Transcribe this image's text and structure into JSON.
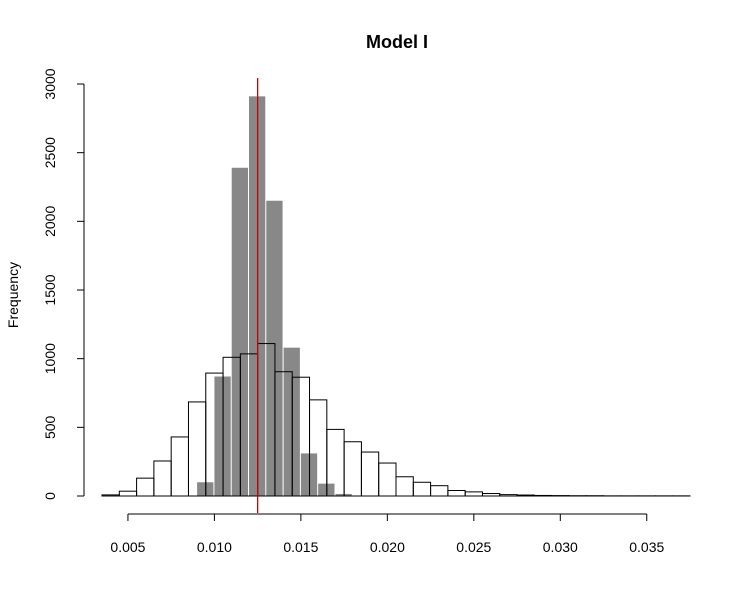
{
  "chart_data": {
    "type": "histogram",
    "title": "Model I",
    "xlabel": "",
    "ylabel": "Frequency",
    "xlim": [
      0.0035,
      0.0375
    ],
    "ylim": [
      0,
      3000
    ],
    "x_ticks": [
      0.005,
      0.01,
      0.015,
      0.02,
      0.025,
      0.03,
      0.035
    ],
    "x_tick_labels": [
      "0.005",
      "0.010",
      "0.015",
      "0.020",
      "0.025",
      "0.030",
      "0.035"
    ],
    "y_ticks": [
      0,
      500,
      1000,
      1500,
      2000,
      2500,
      3000
    ],
    "y_tick_labels": [
      "0",
      "500",
      "1000",
      "1500",
      "2000",
      "2500",
      "3000"
    ],
    "grid": false,
    "reference_line": {
      "x": 0.0125,
      "color": "#cc0000"
    },
    "series": [
      {
        "style": "filled",
        "color": "#888888",
        "bin_width": 0.001,
        "bin_starts": [
          0.009,
          0.01,
          0.011,
          0.012,
          0.013,
          0.014,
          0.015,
          0.016,
          0.017
        ],
        "counts": [
          100,
          870,
          2390,
          2910,
          2150,
          1080,
          310,
          90,
          15
        ]
      },
      {
        "style": "outline",
        "color": "#000000",
        "bin_width": 0.001,
        "bin_starts": [
          0.0035,
          0.0045,
          0.0055,
          0.0065,
          0.0075,
          0.0085,
          0.0095,
          0.0105,
          0.0115,
          0.0125,
          0.0135,
          0.0145,
          0.0155,
          0.0165,
          0.0175,
          0.0185,
          0.0195,
          0.0205,
          0.0215,
          0.0225,
          0.0235,
          0.0245,
          0.0255,
          0.0265,
          0.0275,
          0.0285,
          0.0295,
          0.0305,
          0.0315,
          0.0325,
          0.0335,
          0.0345,
          0.0355,
          0.0365
        ],
        "counts": [
          8,
          35,
          130,
          255,
          430,
          685,
          895,
          1010,
          1035,
          1110,
          905,
          865,
          700,
          485,
          395,
          320,
          240,
          140,
          100,
          75,
          40,
          30,
          18,
          10,
          7,
          4,
          3,
          2,
          2,
          1,
          1,
          1,
          1,
          1
        ]
      }
    ]
  }
}
